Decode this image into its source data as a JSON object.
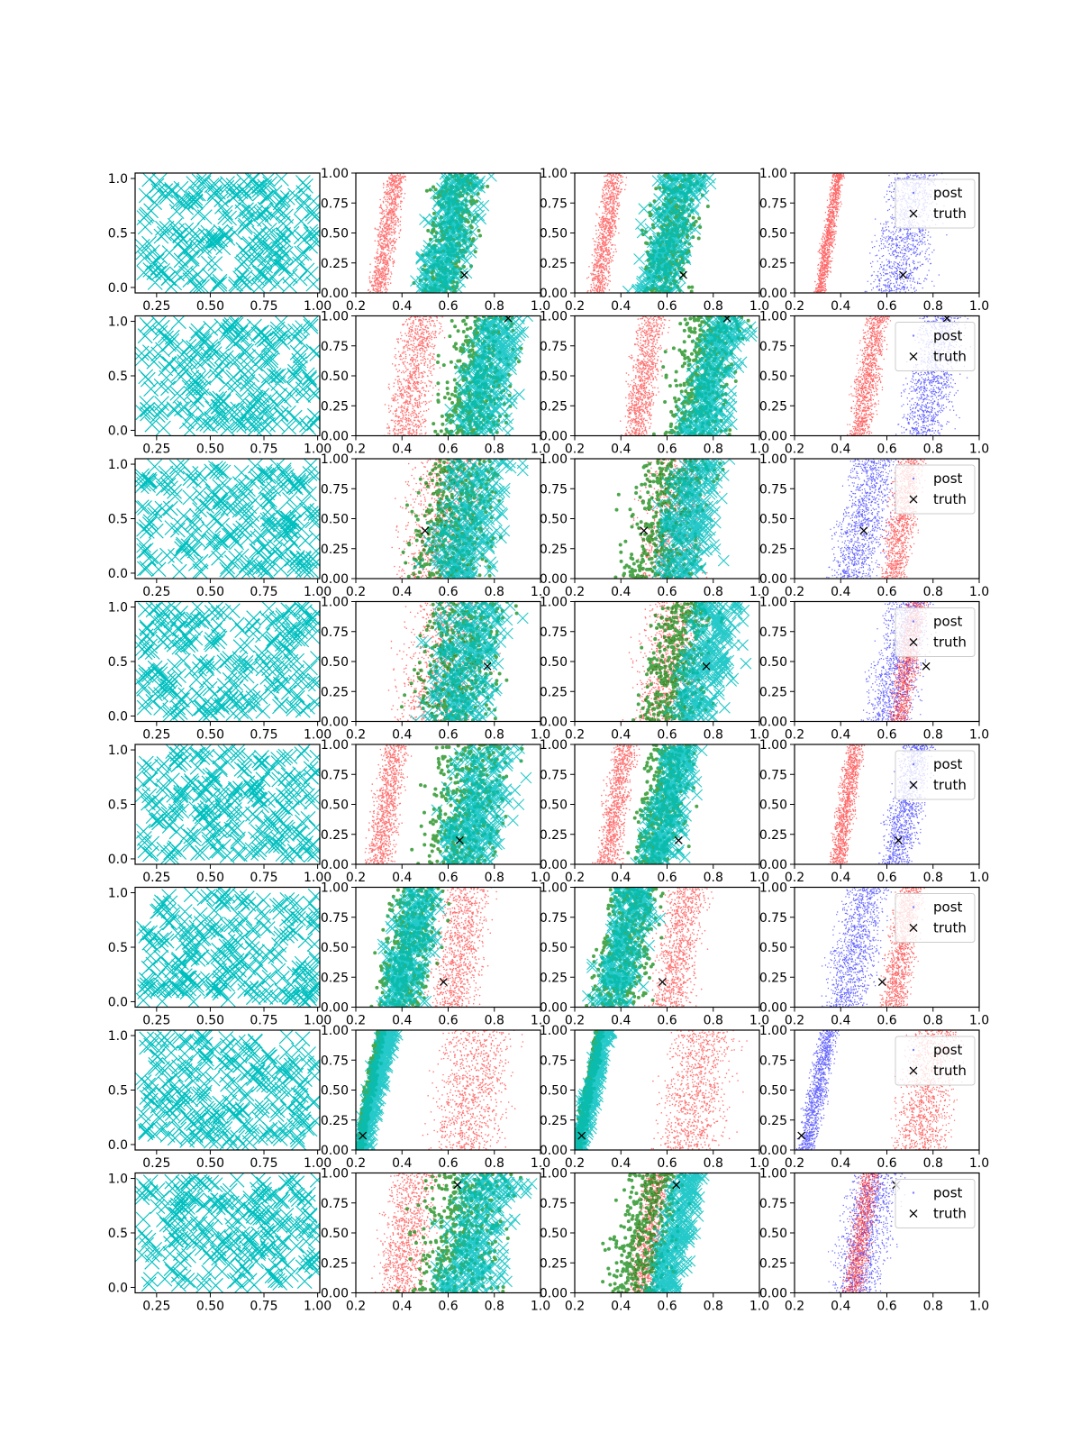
{
  "figure": {
    "rows": 8,
    "columns": 4,
    "colors": {
      "cyan_x": "#00bfbf",
      "green_points": "#008000",
      "red_points": "#ff0000",
      "blue_points": "#0000ff",
      "truth_marker": "#000000",
      "axes": "#000000",
      "background": "#ffffff"
    }
  },
  "chart_data": [
    {
      "type": "scatter",
      "column": 1,
      "description_of_panels": "Left column: dense cyan 'x' markers spread uniformly over x in [0.18, 1.0], y in [0, 1]",
      "xlim": [
        0.15,
        1.01
      ],
      "ylim": [
        -0.05,
        1.05
      ],
      "xticks": [
        "0.25",
        "0.50",
        "0.75",
        "1.00"
      ],
      "xtick_values": [
        0.25,
        0.5,
        0.75,
        1.0
      ],
      "yticks": [
        "0.0",
        "0.5",
        "1.0"
      ],
      "ytick_values": [
        0.0,
        0.5,
        1.0
      ],
      "series": [
        {
          "color": "#00bfbf",
          "marker": "x"
        }
      ]
    },
    {
      "type": "scatter",
      "columns": [
        2,
        3
      ],
      "xlim": [
        0.2,
        1.0
      ],
      "ylim": [
        0.0,
        1.0
      ],
      "xticks": [
        "0.2",
        "0.4",
        "0.6",
        "0.8",
        "1.0"
      ],
      "xtick_values": [
        0.2,
        0.4,
        0.6,
        0.8,
        1.0
      ],
      "yticks": [
        "0.00",
        "0.25",
        "0.50",
        "0.75",
        "1.00"
      ],
      "ytick_values": [
        0.0,
        0.25,
        0.5,
        0.75,
        1.0
      ],
      "series": [
        {
          "color": "#ff0000",
          "marker": "."
        },
        {
          "color": "#008000",
          "marker": "o"
        },
        {
          "color": "#00bfbf",
          "marker": "x"
        },
        {
          "color": "#000000",
          "marker": "x"
        }
      ]
    },
    {
      "type": "scatter",
      "column": 4,
      "xlim": [
        0.2,
        1.0
      ],
      "ylim": [
        0.0,
        1.0
      ],
      "xticks": [
        "0.2",
        "0.4",
        "0.6",
        "0.8",
        "1.0"
      ],
      "xtick_values": [
        0.2,
        0.4,
        0.6,
        0.8,
        1.0
      ],
      "yticks": [
        "0.00",
        "0.25",
        "0.50",
        "0.75",
        "1.00"
      ],
      "ytick_values": [
        0.0,
        0.25,
        0.5,
        0.75,
        1.0
      ],
      "legend": {
        "placement": "top-right",
        "entries": [
          "post",
          "truth"
        ]
      },
      "series": [
        {
          "name": "post",
          "color": "#0000ff",
          "marker": "."
        },
        {
          "color": "#ff0000",
          "marker": "."
        },
        {
          "name": "truth",
          "color": "#000000",
          "marker": "x"
        }
      ]
    }
  ],
  "rows": [
    {
      "truth": [
        0.67,
        0.15
      ],
      "col2": {
        "red_band": [
          0.25,
          0.42
        ],
        "green_band": [
          0.4,
          0.82
        ],
        "cyan_band": [
          0.42,
          0.8
        ]
      },
      "col3": {
        "red_band": [
          0.25,
          0.42
        ],
        "green_band": [
          0.42,
          0.82
        ],
        "cyan_band": [
          0.42,
          0.8
        ]
      },
      "col4": {
        "blue_band": [
          0.45,
          0.92
        ],
        "red_band": [
          0.3,
          0.4
        ]
      }
    },
    {
      "truth": [
        0.86,
        0.98
      ],
      "col2": {
        "red_band": [
          0.28,
          0.62
        ],
        "green_band": [
          0.45,
          1.0
        ],
        "cyan_band": [
          0.55,
          1.0
        ]
      },
      "col3": {
        "red_band": [
          0.38,
          0.62
        ],
        "green_band": [
          0.5,
          1.0
        ],
        "cyan_band": [
          0.6,
          1.0
        ]
      },
      "col4": {
        "blue_band": [
          0.6,
          1.0
        ],
        "red_band": [
          0.42,
          0.62
        ]
      }
    },
    {
      "truth": [
        0.5,
        0.4
      ],
      "col2": {
        "red_band": [
          0.25,
          0.9
        ],
        "green_band": [
          0.3,
          0.95
        ],
        "cyan_band": [
          0.4,
          0.98
        ]
      },
      "col3": {
        "red_band": [
          0.35,
          0.9
        ],
        "green_band": [
          0.28,
          0.9
        ],
        "cyan_band": [
          0.45,
          0.95
        ]
      },
      "col4": {
        "blue_band": [
          0.3,
          0.7
        ],
        "red_band": [
          0.55,
          0.78
        ]
      }
    },
    {
      "truth": [
        0.77,
        0.46
      ],
      "col2": {
        "red_band": [
          0.22,
          0.95
        ],
        "green_band": [
          0.3,
          0.98
        ],
        "cyan_band": [
          0.35,
          1.0
        ]
      },
      "col3": {
        "red_band": [
          0.35,
          0.88
        ],
        "green_band": [
          0.38,
          0.9
        ],
        "cyan_band": [
          0.55,
          1.0
        ]
      },
      "col4": {
        "blue_band": [
          0.45,
          0.85
        ],
        "red_band": [
          0.6,
          0.78
        ]
      }
    },
    {
      "truth": [
        0.65,
        0.2
      ],
      "col2": {
        "red_band": [
          0.22,
          0.45
        ],
        "green_band": [
          0.35,
          1.0
        ],
        "cyan_band": [
          0.45,
          1.0
        ]
      },
      "col3": {
        "red_band": [
          0.28,
          0.48
        ],
        "green_band": [
          0.38,
          0.78
        ],
        "cyan_band": [
          0.45,
          0.78
        ]
      },
      "col4": {
        "blue_band": [
          0.55,
          0.82
        ],
        "red_band": [
          0.35,
          0.5
        ]
      }
    },
    {
      "truth": [
        0.58,
        0.21
      ],
      "col2": {
        "red_band": [
          0.45,
          0.85
        ],
        "green_band": [
          0.2,
          0.65
        ],
        "cyan_band": [
          0.25,
          0.62
        ]
      },
      "col3": {
        "red_band": [
          0.48,
          0.82
        ],
        "green_band": [
          0.2,
          0.65
        ],
        "cyan_band": [
          0.22,
          0.6
        ]
      },
      "col4": {
        "blue_band": [
          0.28,
          0.65
        ],
        "red_band": [
          0.55,
          0.78
        ]
      }
    },
    {
      "truth": [
        0.23,
        0.12
      ],
      "col2": {
        "red_band": [
          0.4,
          1.0
        ],
        "green_band": [
          0.22,
          0.3
        ],
        "cyan_band": [
          0.22,
          0.35
        ]
      },
      "col3": {
        "red_band": [
          0.45,
          1.0
        ],
        "green_band": [
          0.22,
          0.3
        ],
        "cyan_band": [
          0.22,
          0.33
        ]
      },
      "col4": {
        "blue_band": [
          0.22,
          0.38
        ],
        "red_band": [
          0.55,
          1.0
        ]
      }
    },
    {
      "truth": [
        0.64,
        0.9
      ],
      "col2": {
        "red_band": [
          0.22,
          0.62
        ],
        "green_band": [
          0.3,
          1.0
        ],
        "cyan_band": [
          0.45,
          1.0
        ]
      },
      "col3": {
        "red_band": [
          0.4,
          0.65
        ],
        "green_band": [
          0.25,
          0.75
        ],
        "cyan_band": [
          0.5,
          0.78
        ]
      },
      "col4": {
        "blue_band": [
          0.3,
          0.72
        ],
        "red_band": [
          0.4,
          0.58
        ]
      }
    }
  ]
}
